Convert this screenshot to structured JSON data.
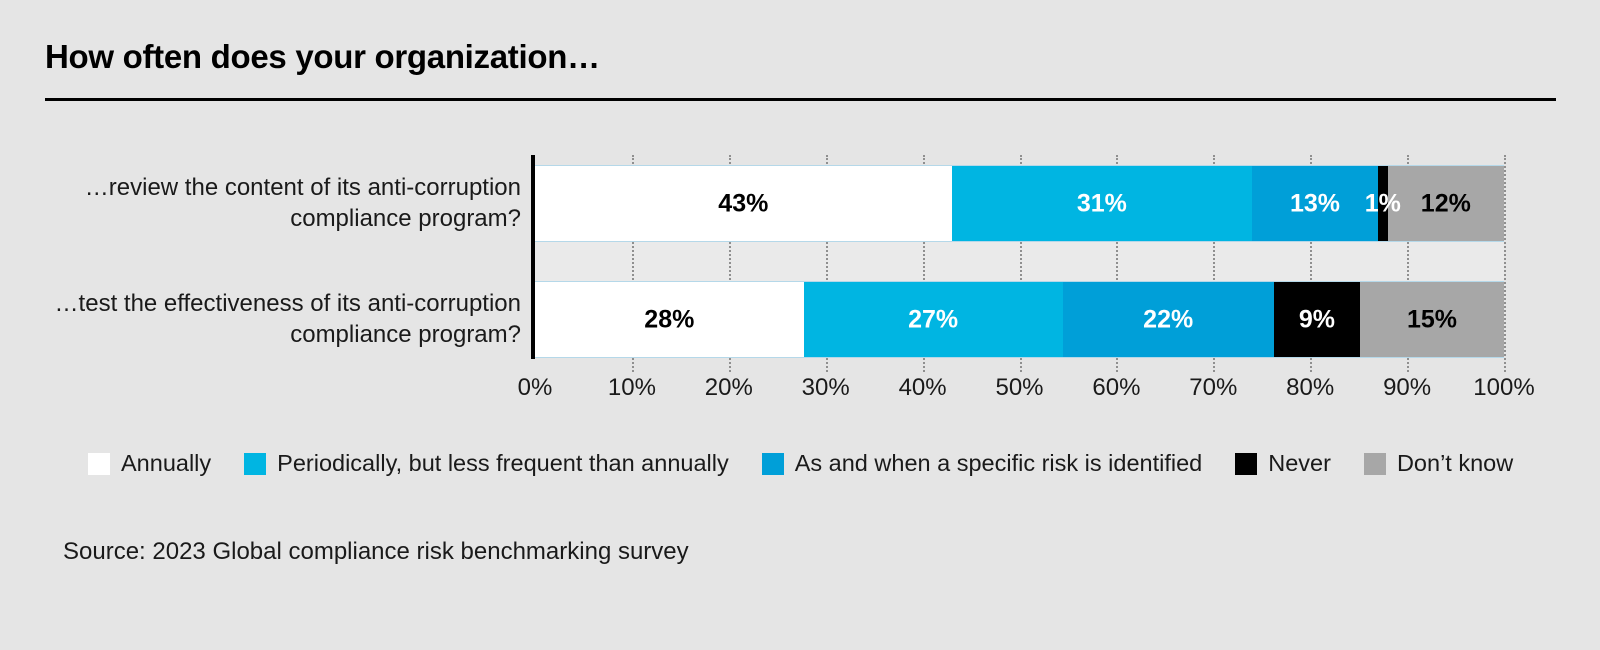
{
  "title": "How often does your organization…",
  "source": "Source: 2023 Global compliance risk benchmarking survey",
  "colors": {
    "background": "#e5e5e5",
    "gap_band": "#eaeaea",
    "axis": "#000000",
    "gridline": "#8f8f8f",
    "bar_outline": "#b5d8e9"
  },
  "chart_data": {
    "type": "bar",
    "stacked": true,
    "orientation": "horizontal",
    "title": "How often does your organization…",
    "categories": [
      "…review the content of its anti-corruption compliance program?",
      "…test the effectiveness of its anti-corruption compliance program?"
    ],
    "series": [
      {
        "name": "Annually",
        "color": "#ffffff",
        "label_color": "#000000",
        "values": [
          43,
          28
        ]
      },
      {
        "name": "Periodically, but less frequent than annually",
        "color": "#00b5e2",
        "label_color": "#ffffff",
        "values": [
          31,
          27
        ]
      },
      {
        "name": "As and when a specific risk is identified",
        "color": "#009fd8",
        "label_color": "#ffffff",
        "values": [
          13,
          22
        ]
      },
      {
        "name": "Never",
        "color": "#000000",
        "label_color": "#ffffff",
        "values": [
          1,
          9
        ]
      },
      {
        "name": "Don’t know",
        "color": "#a7a7a7",
        "label_color": "#000000",
        "values": [
          12,
          15
        ]
      }
    ],
    "value_suffix": "%",
    "x_ticks": [
      "0%",
      "10%",
      "20%",
      "30%",
      "40%",
      "50%",
      "60%",
      "70%",
      "80%",
      "90%",
      "100%"
    ],
    "xlim": [
      0,
      100
    ],
    "grid": "dotted-vertical",
    "legend_position": "bottom"
  }
}
